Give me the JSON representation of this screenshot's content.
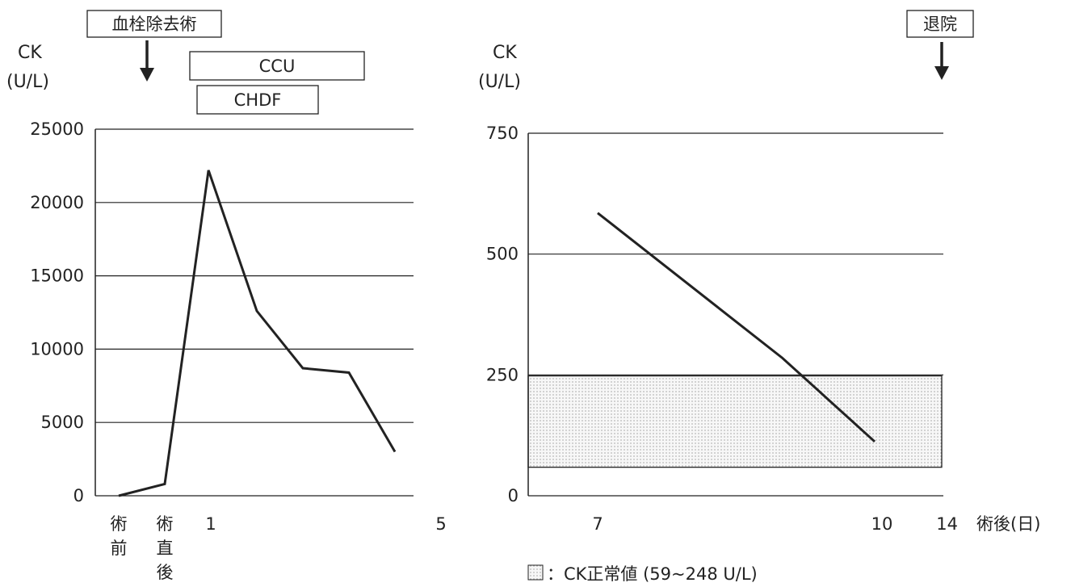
{
  "chart_data": [
    {
      "type": "line",
      "ylabel_line1": "CK",
      "ylabel_line2": "(U/L)",
      "ylim": [
        0,
        25000
      ],
      "y_ticks": [
        "0",
        "5000",
        "10000",
        "15000",
        "20000",
        "25000"
      ],
      "x_categories": [
        "術前",
        "術直後",
        "1",
        "",
        "",
        "",
        "",
        "5"
      ],
      "x_tick_labels": [
        {
          "lines": [
            "術",
            "前"
          ]
        },
        {
          "lines": [
            "術",
            "直",
            "後"
          ]
        },
        {
          "lines": [
            "1"
          ]
        },
        {
          "lines": [
            "5"
          ]
        }
      ],
      "grid": true,
      "series": [
        {
          "x": [
            0,
            1,
            1.95,
            3,
            4,
            5,
            6
          ],
          "values": [
            0,
            800,
            22200,
            12600,
            8700,
            8400,
            3000
          ],
          "color": "#222222"
        }
      ],
      "annotations": {
        "surgery_label": "血栓除去術",
        "ccu_label": "CCU",
        "chdf_label": "CHDF"
      }
    },
    {
      "type": "line",
      "ylabel_line1": "CK",
      "ylabel_line2": "(U/L)",
      "ylim": [
        0,
        750
      ],
      "y_ticks": [
        "0",
        "250",
        "500",
        "750"
      ],
      "x_tick_labels": [
        "7",
        "10",
        "14"
      ],
      "xlabel": "術後(日)",
      "grid": true,
      "series": [
        {
          "x": [
            7,
            9,
            10
          ],
          "values": [
            585,
            285,
            112
          ],
          "color": "#222222"
        }
      ],
      "normal_range": [
        59,
        248
      ],
      "annotations": {
        "discharge_label": "退院",
        "legend_text": "：CK正常値 (59~248 U/L)"
      }
    }
  ]
}
